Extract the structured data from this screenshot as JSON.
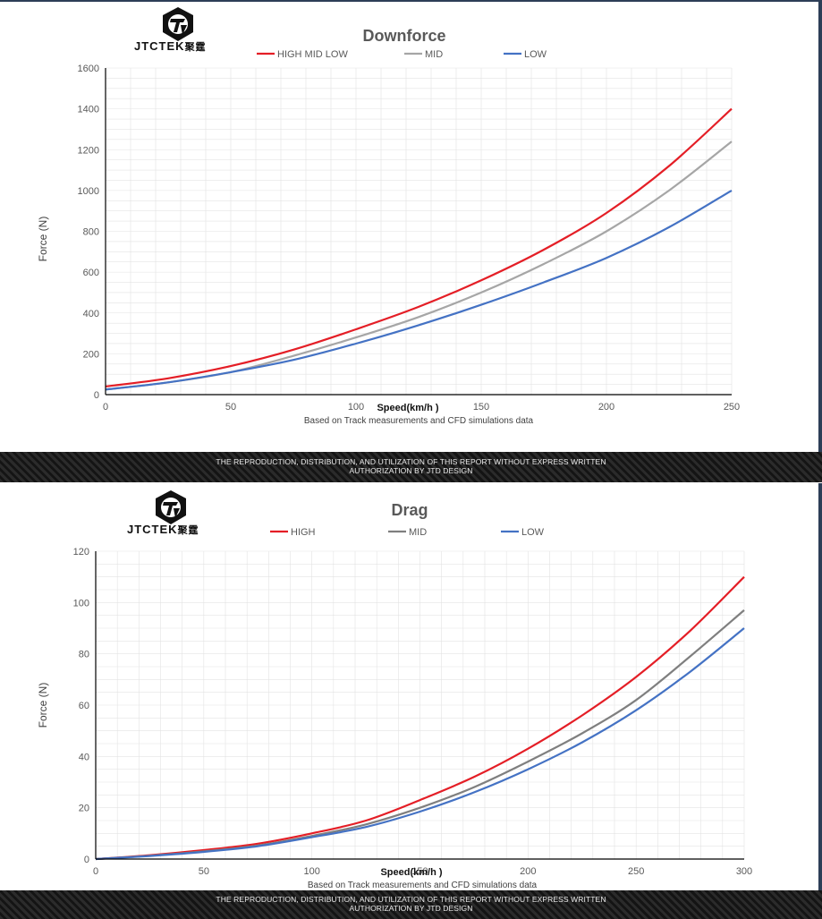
{
  "brand": {
    "name": "JTCTEK",
    "name_cn": "聚霆"
  },
  "banner": {
    "line1": "THE REPRODUCTION, DISTRIBUTION, AND UTILIZATION OF THIS REPORT WITHOUT EXPRESS WRITTEN",
    "line2": "AUTHORIZATION BY JTD DESIGN"
  },
  "colors": {
    "high": "#e41e26",
    "mid": "#a6a6a6",
    "mid_drag": "#7f7f7f",
    "low": "#4472c4",
    "axis": "#000000",
    "grid": "#d9d9d9"
  },
  "chart_data": [
    {
      "type": "line",
      "title": "Downforce",
      "xlabel": "Speed(km/h )",
      "ylabel": "Force (N)",
      "note": "Based on Track measurements and CFD simulations data",
      "xlim": [
        0,
        250
      ],
      "ylim": [
        0,
        1600
      ],
      "xticks": [
        "0",
        "50",
        "100",
        "150",
        "200",
        "250"
      ],
      "yticks": [
        "0",
        "200",
        "400",
        "600",
        "800",
        "1000",
        "1200",
        "1400",
        "1600"
      ],
      "x": [
        0,
        25,
        50,
        75,
        100,
        125,
        150,
        175,
        200,
        225,
        250
      ],
      "series": [
        {
          "name": "HIGH MID LOW",
          "key": "high",
          "values": [
            40,
            80,
            140,
            220,
            320,
            430,
            560,
            710,
            890,
            1120,
            1400
          ]
        },
        {
          "name": "MID",
          "key": "mid",
          "values": [
            25,
            60,
            110,
            190,
            280,
            380,
            500,
            640,
            800,
            1000,
            1240
          ]
        },
        {
          "name": "LOW",
          "key": "low",
          "values": [
            25,
            60,
            110,
            170,
            250,
            340,
            440,
            550,
            670,
            820,
            1000
          ]
        }
      ]
    },
    {
      "type": "line",
      "title": "Drag",
      "xlabel": "Speed(km/h )",
      "ylabel": "Force (N)",
      "note": "Based on Track measurements and CFD simulations data",
      "xlim": [
        0,
        300
      ],
      "ylim": [
        0,
        120
      ],
      "xticks": [
        "0",
        "50",
        "100",
        "150",
        "200",
        "250",
        "300"
      ],
      "yticks": [
        "0",
        "20",
        "40",
        "60",
        "80",
        "100",
        "120"
      ],
      "x": [
        0,
        25,
        50,
        75,
        100,
        125,
        150,
        175,
        200,
        225,
        250,
        275,
        300
      ],
      "series": [
        {
          "name": "HIGH",
          "key": "high",
          "values": [
            0,
            1.5,
            3.5,
            6,
            10,
            15,
            23,
            32,
            43,
            56,
            71,
            89,
            110
          ]
        },
        {
          "name": "MID",
          "key": "mid_drag",
          "values": [
            0,
            1.3,
            3,
            5.3,
            9,
            13.5,
            20,
            28,
            38,
            49,
            62,
            79,
            97
          ]
        },
        {
          "name": "LOW",
          "key": "low",
          "values": [
            0,
            1.2,
            2.8,
            5,
            8.5,
            12.5,
            18.5,
            26,
            35,
            45.5,
            58,
            73,
            90
          ]
        }
      ]
    }
  ]
}
